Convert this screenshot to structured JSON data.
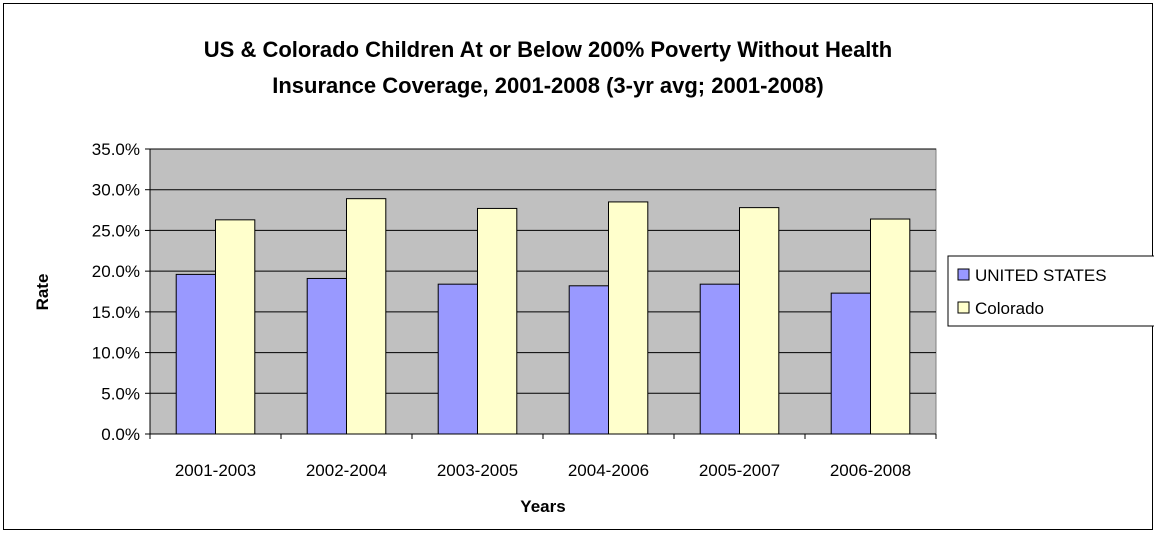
{
  "chart_data": {
    "type": "bar",
    "title_lines": [
      "US & Colorado Children At or Below 200% Poverty Without Health",
      "Insurance Coverage, 2001-2008 (3-yr avg; 2001-2008)"
    ],
    "xlabel": "Years",
    "ylabel": "Rate",
    "categories": [
      "2001-2003",
      "2002-2004",
      "2003-2005",
      "2004-2006",
      "2005-2007",
      "2006-2008"
    ],
    "series": [
      {
        "name": "UNITED STATES",
        "color": "#9999FF",
        "values": [
          19.6,
          19.1,
          18.4,
          18.2,
          18.4,
          17.3
        ]
      },
      {
        "name": "Colorado",
        "color": "#FFFFCC",
        "values": [
          26.3,
          28.9,
          27.7,
          28.5,
          27.8,
          26.4
        ]
      }
    ],
    "ylim": [
      0,
      35
    ],
    "yticks": [
      "0.0%",
      "5.0%",
      "10.0%",
      "15.0%",
      "20.0%",
      "25.0%",
      "30.0%",
      "35.0%"
    ],
    "plot_background": "#C0C0C0",
    "grid": true,
    "legend_position": "right"
  }
}
